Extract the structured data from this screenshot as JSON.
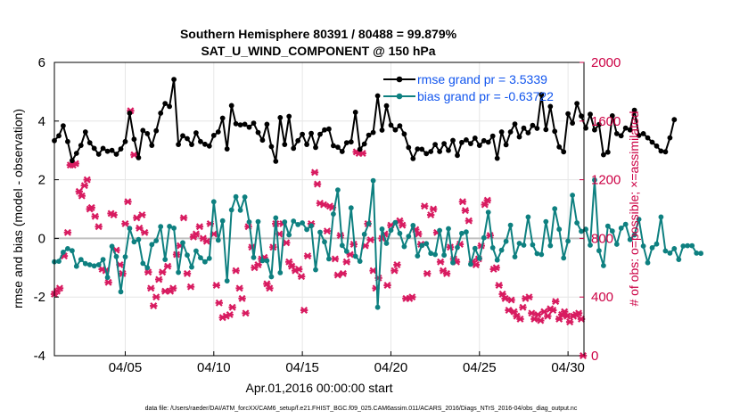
{
  "chart_data": {
    "type": "line",
    "title_line1": "Southern Hemisphere 80391 / 80488 = 99.879%",
    "title_line2": "SAT_U_WIND_COMPONENT @ 150 hPa",
    "xlabel": "Apr.01,2016 00:00:00 start",
    "ylabel_left": "rmse and bias (model - observation)",
    "ylabel_right": "# of obs: o=possible; ×=assimilated",
    "footer": "data file: /Users/raeder/DAI/ATM_forcXX/CAM6_setup/f.e21.FHIST_BGC.f09_025.CAM6assim.011/ACARS_2016/Diags_NTrS_2016-04/obs_diag_output.nc",
    "x_ticks": [
      {
        "day": 5,
        "label": "04/05"
      },
      {
        "day": 10,
        "label": "04/10"
      },
      {
        "day": 15,
        "label": "04/15"
      },
      {
        "day": 20,
        "label": "04/20"
      },
      {
        "day": 25,
        "label": "04/25"
      },
      {
        "day": 30,
        "label": "04/30"
      }
    ],
    "y_left_ticks": [
      -4,
      -2,
      0,
      2,
      4,
      6
    ],
    "y_left_tick_labels": [
      "-4",
      "-2",
      "0",
      "2",
      "4",
      "6"
    ],
    "y_right_ticks": [
      0,
      400,
      800,
      1200,
      1600,
      2000
    ],
    "y_right_tick_labels": [
      "0",
      "400",
      "800",
      "1200",
      "1600",
      "2000"
    ],
    "xlim": [
      1,
      30.9
    ],
    "ylim_left": [
      -4,
      6
    ],
    "ylim_right": [
      0,
      2000
    ],
    "zero_line": 0,
    "colors": {
      "rmse": "#000000",
      "bias": "#0e8080",
      "obs": "#d81b60",
      "legend_text": "#1155ee",
      "right_axis": "#cc0044",
      "zero_line": "#c0c0c0"
    },
    "legend": [
      {
        "key": "rmse",
        "label": "rmse grand pr = 3.5339"
      },
      {
        "key": "bias",
        "label": "bias grand pr = -0.63722"
      }
    ],
    "series": [
      {
        "name": "rmse",
        "x_start": 1,
        "dx": 0.25,
        "values": [
          3.33,
          3.5,
          3.84,
          3.3,
          2.65,
          2.9,
          3.17,
          3.63,
          3.26,
          3.07,
          2.87,
          3.07,
          2.97,
          3.0,
          2.87,
          3.05,
          3.3,
          4.27,
          3.38,
          2.75,
          3.68,
          3.57,
          3.17,
          3.67,
          4.27,
          4.6,
          4.5,
          5.42,
          3.2,
          3.5,
          3.4,
          3.2,
          3.6,
          3.3,
          3.21,
          3.15,
          3.51,
          3.63,
          4.1,
          3.05,
          4.53,
          3.91,
          3.87,
          3.89,
          3.79,
          3.93,
          3.61,
          3.35,
          3.89,
          3.13,
          2.63,
          4.12,
          3.2,
          4.16,
          3.07,
          3.33,
          3.55,
          3.2,
          3.58,
          3.1,
          3.55,
          3.7,
          3.73,
          3.16,
          3.11,
          2.96,
          3.26,
          3.29,
          4.3,
          3.04,
          3.22,
          3.52,
          3.61,
          4.86,
          3.69,
          4.52,
          3.86,
          3.7,
          3.84,
          3.56,
          3.1,
          2.72,
          3.05,
          3.04,
          2.89,
          2.96,
          3.2,
          2.96,
          3.23,
          3.0,
          3.34,
          2.83,
          3.27,
          3.36,
          3.23,
          3.42,
          3.17,
          3.33,
          3.28,
          3.49,
          2.73,
          3.63,
          3.19,
          3.63,
          3.9,
          3.46,
          3.76,
          3.6,
          3.85,
          3.75,
          4.9,
          3.71,
          4.5,
          3.65,
          3.12,
          2.95,
          4.25,
          3.93,
          4.6,
          4.17,
          3.76,
          4.23,
          3.7,
          3.88,
          2.85,
          2.94,
          4.18,
          3.57,
          3.5,
          3.76,
          3.7,
          4.37,
          3.51,
          3.57,
          3.43,
          3.28,
          3.15,
          2.98,
          2.95,
          3.43,
          4.05
        ]
      },
      {
        "name": "bias",
        "x_start": 1,
        "dx": 0.25,
        "values": [
          -0.8,
          -0.78,
          -0.47,
          -0.35,
          -0.42,
          -0.95,
          -0.72,
          -0.86,
          -0.9,
          -0.94,
          -0.9,
          -0.72,
          -1.33,
          -0.27,
          -0.62,
          -1.82,
          -0.63,
          0.34,
          -0.12,
          -0.04,
          -0.85,
          -1.0,
          -0.21,
          -0.08,
          0.4,
          -0.72,
          0.41,
          0.35,
          -1.16,
          -0.15,
          -0.57,
          -0.98,
          -0.43,
          -0.66,
          -0.8,
          -0.68,
          1.25,
          -0.06,
          0.6,
          -1.45,
          0.97,
          1.42,
          0.96,
          1.41,
          0.56,
          -0.65,
          0.57,
          -0.76,
          -0.76,
          -1.31,
          0.7,
          -1.17,
          0.56,
          0.12,
          0.59,
          0.47,
          0.53,
          0.3,
          0.43,
          -1.07,
          0.21,
          -0.12,
          -0.7,
          0.83,
          1.65,
          -0.24,
          -0.44,
          1.04,
          -0.61,
          -0.78,
          0.14,
          0.5,
          1.97,
          -2.35,
          0.32,
          -0.17,
          0.28,
          0.54,
          0.17,
          -0.28,
          0.07,
          0.44,
          -0.6,
          -0.24,
          -0.18,
          -0.51,
          -0.55,
          0.27,
          -0.57,
          0.33,
          -0.83,
          -0.31,
          0.17,
          0.22,
          -0.88,
          -0.34,
          -0.68,
          0.02,
          0.89,
          -0.32,
          -0.74,
          -0.4,
          -0.1,
          0.45,
          -0.63,
          -0.17,
          -0.23,
          0.73,
          -0.22,
          -0.52,
          -0.55,
          0.57,
          -0.25,
          1.01,
          0.31,
          -0.67,
          -0.09,
          1.47,
          0.53,
          0.24,
          0.31,
          -0.23,
          1.99,
          -0.42,
          -0.93,
          0.42,
          0.25,
          -0.2,
          0.35,
          0.48,
          -0.04,
          0.12,
          0.65,
          -0.26,
          -0.83,
          -0.32,
          -0.19,
          0.73,
          -0.43,
          -0.5,
          -0.35,
          -0.72,
          -0.26,
          -0.25,
          -0.25,
          -0.5,
          -0.51
        ]
      },
      {
        "name": "obs_assimilated",
        "marker": "cross",
        "points": [
          [
            1.0,
            420
          ],
          [
            1.15,
            440
          ],
          [
            1.3,
            460
          ],
          [
            1.55,
            680
          ],
          [
            1.75,
            840
          ],
          [
            1.9,
            1300
          ],
          [
            2.05,
            1300
          ],
          [
            2.2,
            1310
          ],
          [
            2.4,
            1120
          ],
          [
            2.55,
            1090
          ],
          [
            2.7,
            1160
          ],
          [
            2.85,
            1200
          ],
          [
            3.0,
            1000
          ],
          [
            3.1,
            1010
          ],
          [
            3.3,
            950
          ],
          [
            3.5,
            880
          ],
          [
            3.7,
            590
          ],
          [
            3.9,
            580
          ],
          [
            4.05,
            500
          ],
          [
            4.2,
            970
          ],
          [
            4.35,
            960
          ],
          [
            4.5,
            720
          ],
          [
            4.7,
            620
          ],
          [
            4.85,
            560
          ],
          [
            5.0,
            900
          ],
          [
            5.15,
            1050
          ],
          [
            5.3,
            1670
          ],
          [
            5.5,
            1370
          ],
          [
            5.65,
            940
          ],
          [
            5.8,
            870
          ],
          [
            5.95,
            960
          ],
          [
            6.1,
            840
          ],
          [
            6.3,
            570
          ],
          [
            6.45,
            460
          ],
          [
            6.6,
            340
          ],
          [
            6.75,
            400
          ],
          [
            6.9,
            520
          ],
          [
            7.1,
            570
          ],
          [
            7.25,
            440
          ],
          [
            7.4,
            610
          ],
          [
            7.55,
            440
          ],
          [
            7.7,
            460
          ],
          [
            7.9,
            690
          ],
          [
            8.1,
            750
          ],
          [
            8.3,
            940
          ],
          [
            8.5,
            560
          ],
          [
            8.7,
            470
          ],
          [
            8.85,
            810
          ],
          [
            9.0,
            830
          ],
          [
            9.2,
            880
          ],
          [
            9.4,
            800
          ],
          [
            9.6,
            780
          ],
          [
            9.8,
            900
          ],
          [
            10.0,
            830
          ],
          [
            10.15,
            480
          ],
          [
            10.3,
            360
          ],
          [
            10.5,
            260
          ],
          [
            10.7,
            270
          ],
          [
            10.9,
            280
          ],
          [
            11.05,
            330
          ],
          [
            11.25,
            580
          ],
          [
            11.45,
            460
          ],
          [
            11.6,
            390
          ],
          [
            11.8,
            290
          ],
          [
            11.95,
            880
          ],
          [
            12.15,
            740
          ],
          [
            12.3,
            600
          ],
          [
            12.5,
            620
          ],
          [
            12.7,
            660
          ],
          [
            12.85,
            670
          ],
          [
            13.0,
            490
          ],
          [
            13.15,
            460
          ],
          [
            13.35,
            740
          ],
          [
            13.5,
            900
          ],
          [
            13.7,
            830
          ],
          [
            13.9,
            900
          ],
          [
            14.1,
            770
          ],
          [
            14.25,
            640
          ],
          [
            14.4,
            610
          ],
          [
            14.6,
            580
          ],
          [
            14.8,
            590
          ],
          [
            14.95,
            540
          ],
          [
            15.1,
            310
          ],
          [
            15.3,
            680
          ],
          [
            15.5,
            900
          ],
          [
            15.7,
            1250
          ],
          [
            15.85,
            1170
          ],
          [
            16.0,
            1040
          ],
          [
            16.2,
            1030
          ],
          [
            16.4,
            850
          ],
          [
            16.55,
            1020
          ],
          [
            16.7,
            1010
          ],
          [
            16.85,
            660
          ],
          [
            17.0,
            550
          ],
          [
            17.15,
            820
          ],
          [
            17.3,
            560
          ],
          [
            17.5,
            640
          ],
          [
            17.7,
            690
          ],
          [
            17.9,
            760
          ],
          [
            18.05,
            1390
          ],
          [
            18.2,
            1380
          ],
          [
            18.4,
            1380
          ],
          [
            18.55,
            750
          ],
          [
            18.7,
            900
          ],
          [
            18.85,
            790
          ],
          [
            19.0,
            580
          ],
          [
            19.15,
            460
          ],
          [
            19.3,
            530
          ],
          [
            19.5,
            800
          ],
          [
            19.65,
            830
          ],
          [
            19.8,
            480
          ],
          [
            20.0,
            890
          ],
          [
            20.2,
            580
          ],
          [
            20.35,
            620
          ],
          [
            20.5,
            920
          ],
          [
            20.65,
            890
          ],
          [
            20.85,
            390
          ],
          [
            21.05,
            390
          ],
          [
            21.2,
            400
          ],
          [
            21.4,
            860
          ],
          [
            21.55,
            830
          ],
          [
            21.7,
            760
          ],
          [
            21.9,
            1020
          ],
          [
            22.05,
            560
          ],
          [
            22.25,
            960
          ],
          [
            22.4,
            1000
          ],
          [
            22.6,
            840
          ],
          [
            22.8,
            640
          ],
          [
            22.95,
            580
          ],
          [
            23.15,
            560
          ],
          [
            23.35,
            740
          ],
          [
            23.55,
            660
          ],
          [
            23.7,
            640
          ],
          [
            23.9,
            760
          ],
          [
            24.05,
            1050
          ],
          [
            24.2,
            990
          ],
          [
            24.4,
            920
          ],
          [
            24.6,
            640
          ],
          [
            24.8,
            620
          ],
          [
            24.95,
            660
          ],
          [
            25.1,
            750
          ],
          [
            25.3,
            1030
          ],
          [
            25.45,
            1060
          ],
          [
            25.6,
            820
          ],
          [
            25.8,
            590
          ],
          [
            25.95,
            600
          ],
          [
            26.1,
            480
          ],
          [
            26.3,
            420
          ],
          [
            26.45,
            390
          ],
          [
            26.65,
            310
          ],
          [
            26.8,
            380
          ],
          [
            26.95,
            300
          ],
          [
            27.1,
            270
          ],
          [
            27.3,
            250
          ],
          [
            27.45,
            330
          ],
          [
            27.6,
            390
          ],
          [
            27.8,
            400
          ],
          [
            27.95,
            290
          ],
          [
            28.1,
            250
          ],
          [
            28.3,
            280
          ],
          [
            28.45,
            240
          ],
          [
            28.65,
            300
          ],
          [
            28.85,
            270
          ],
          [
            29.0,
            320
          ],
          [
            29.15,
            310
          ],
          [
            29.3,
            370
          ],
          [
            29.5,
            250
          ],
          [
            29.65,
            280
          ],
          [
            29.8,
            300
          ],
          [
            29.95,
            270
          ],
          [
            30.1,
            230
          ],
          [
            30.3,
            270
          ],
          [
            30.45,
            280
          ],
          [
            30.6,
            290
          ],
          [
            30.75,
            250
          ],
          [
            30.85,
            0
          ]
        ]
      }
    ]
  }
}
